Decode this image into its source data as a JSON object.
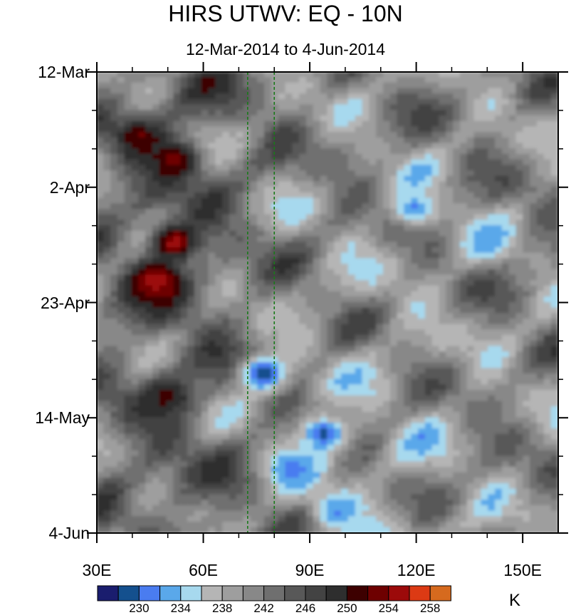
{
  "title": "HIRS UTWV: EQ - 10N",
  "subtitle": "12-Mar-2014 to 4-Jun-2014",
  "colorbar": {
    "unit": "K",
    "labels": [
      "230",
      "234",
      "238",
      "242",
      "246",
      "250",
      "254",
      "258"
    ],
    "colors": [
      "#1a1d6e",
      "#14508e",
      "#4a7cf0",
      "#5aa8ea",
      "#a7d9ee",
      "#b5b5b5",
      "#9e9e9e",
      "#888888",
      "#6f6f6f",
      "#585858",
      "#434343",
      "#2e2e2e",
      "#3d0000",
      "#6e0000",
      "#9c0a0a",
      "#dc3a14",
      "#d66a1e"
    ]
  },
  "chart_data": {
    "type": "heatmap",
    "title": "HIRS UTWV: EQ - 10N",
    "subtitle": "12-Mar-2014 to 4-Jun-2014",
    "x_axis": {
      "range": [
        30,
        160
      ],
      "ticks": [
        30,
        60,
        90,
        120,
        150
      ],
      "tick_labels": [
        "30E",
        "60E",
        "90E",
        "120E",
        "150E"
      ]
    },
    "y_axis": {
      "range": [
        "2014-03-12",
        "2014-06-04"
      ],
      "reversed": true,
      "ticks": [
        "2014-03-12",
        "2014-04-02",
        "2014-04-23",
        "2014-05-14",
        "2014-06-04"
      ],
      "tick_labels": [
        "12-Mar",
        "2-Apr",
        "23-Apr",
        "14-May",
        "4-Jun"
      ]
    },
    "reference_lines_longitude": [
      72.5,
      80
    ],
    "contour_levels": [
      228,
      230,
      232,
      234,
      236,
      238,
      240,
      242,
      244,
      246,
      248,
      250,
      252,
      254,
      256,
      258,
      260
    ],
    "unit": "K",
    "features": [
      {
        "lon": 47,
        "date": "2014-04-19",
        "value": 258
      },
      {
        "lon": 52,
        "date": "2014-04-12",
        "value": 257
      },
      {
        "lon": 52,
        "date": "2014-03-28",
        "value": 255
      },
      {
        "lon": 42,
        "date": "2014-03-24",
        "value": 254
      },
      {
        "lon": 50,
        "date": "2014-05-10",
        "value": 253
      },
      {
        "lon": 77,
        "date": "2014-05-06",
        "value": 230
      },
      {
        "lon": 94,
        "date": "2014-05-17",
        "value": 231
      },
      {
        "lon": 85,
        "date": "2014-05-23",
        "value": 233
      },
      {
        "lon": 98,
        "date": "2014-05-31",
        "value": 234
      },
      {
        "lon": 140,
        "date": "2014-04-12",
        "value": 235
      },
      {
        "lon": 120,
        "date": "2014-04-06",
        "value": 234
      }
    ]
  }
}
